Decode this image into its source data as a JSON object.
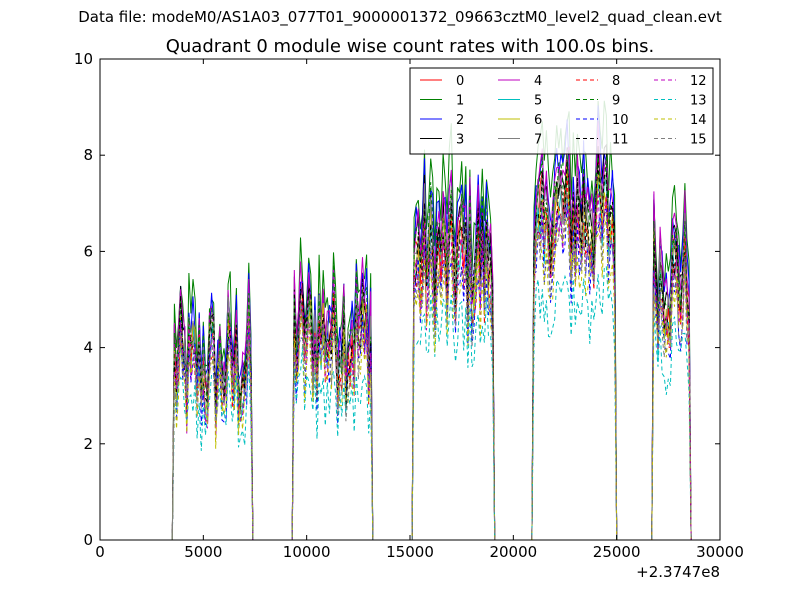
{
  "figure": {
    "suptitle": "Data file: modeM0/AS1A03_077T01_9000001372_09663cztM0_level2_quad_clean.evt"
  },
  "chart_data": {
    "type": "line",
    "title": "Quadrant 0 module wise count rates with 100.0s bins.",
    "xlabel": "",
    "ylabel": "",
    "x_offset_label": "+2.3747e8",
    "xlim": [
      0,
      30000
    ],
    "ylim": [
      0,
      10
    ],
    "xticks": [
      "0",
      "5000",
      "10000",
      "15000",
      "20000",
      "25000",
      "30000"
    ],
    "yticks": [
      "0",
      "2",
      "4",
      "6",
      "8",
      "10"
    ],
    "xtick_values": [
      0,
      5000,
      10000,
      15000,
      20000,
      25000,
      30000
    ],
    "ytick_values": [
      0,
      2,
      4,
      6,
      8,
      10
    ],
    "grid": false,
    "legend_position": "top-right",
    "legend_columns": 4,
    "segments": [
      {
        "start": 3600,
        "end": 7300,
        "level": 3.6
      },
      {
        "start": 9400,
        "end": 13100,
        "level": 4.3
      },
      {
        "start": 15200,
        "end": 19000,
        "level": 5.9
      },
      {
        "start": 21000,
        "end": 21700,
        "level": 6.3
      },
      {
        "start": 21700,
        "end": 24900,
        "level": 6.8
      },
      {
        "start": 26800,
        "end": 28500,
        "level": 5.5
      }
    ],
    "series": [
      {
        "name": "0",
        "color": "#ff0000",
        "dash": "solid",
        "scale": 1.0
      },
      {
        "name": "1",
        "color": "#008000",
        "dash": "solid",
        "scale": 1.18
      },
      {
        "name": "2",
        "color": "#0000ff",
        "dash": "solid",
        "scale": 1.1
      },
      {
        "name": "3",
        "color": "#000000",
        "dash": "solid",
        "scale": 1.05
      },
      {
        "name": "4",
        "color": "#bf00bf",
        "dash": "solid",
        "scale": 1.08
      },
      {
        "name": "5",
        "color": "#00bfbf",
        "dash": "solid",
        "scale": 0.95
      },
      {
        "name": "6",
        "color": "#bfbf00",
        "dash": "solid",
        "scale": 0.97
      },
      {
        "name": "7",
        "color": "#808080",
        "dash": "solid",
        "scale": 1.02
      },
      {
        "name": "8",
        "color": "#ff0000",
        "dash": "dashed",
        "scale": 0.93
      },
      {
        "name": "9",
        "color": "#008000",
        "dash": "dashed",
        "scale": 1.04
      },
      {
        "name": "10",
        "color": "#0000ff",
        "dash": "dashed",
        "scale": 0.88
      },
      {
        "name": "11",
        "color": "#000000",
        "dash": "dashed",
        "scale": 0.99
      },
      {
        "name": "12",
        "color": "#bf00bf",
        "dash": "dashed",
        "scale": 0.91
      },
      {
        "name": "13",
        "color": "#00bfbf",
        "dash": "dashed",
        "scale": 0.72
      },
      {
        "name": "14",
        "color": "#bfbf00",
        "dash": "dashed",
        "scale": 0.85
      },
      {
        "name": "15",
        "color": "#808080",
        "dash": "dashed",
        "scale": 0.89
      }
    ]
  }
}
